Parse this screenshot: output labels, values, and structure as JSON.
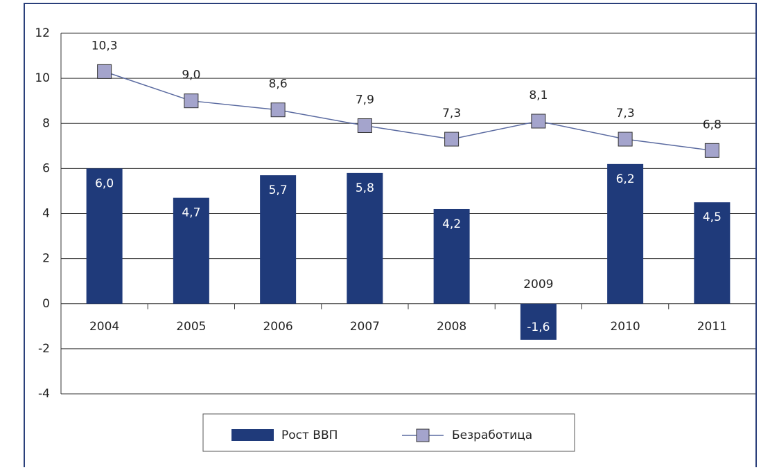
{
  "chart_data": {
    "type": "bar_line",
    "categories": [
      "2004",
      "2005",
      "2006",
      "2007",
      "2008",
      "2009",
      "2010",
      "2011"
    ],
    "series": [
      {
        "name": "Рост ВВП",
        "type": "bar",
        "color": "#1f3a7a",
        "values": [
          6.0,
          4.7,
          5.7,
          5.8,
          4.2,
          -1.6,
          6.2,
          4.5
        ],
        "value_labels": [
          "6,0",
          "4,7",
          "5,7",
          "5,8",
          "4,2",
          "-1,6",
          "6,2",
          "4,5"
        ]
      },
      {
        "name": "Безработица",
        "type": "line",
        "color": "#5a6aa0",
        "marker_color": "#a4a4cc",
        "values": [
          10.3,
          9.0,
          8.6,
          7.9,
          7.3,
          8.1,
          7.3,
          6.8
        ],
        "value_labels": [
          "10,3",
          "9,0",
          "8,6",
          "7,9",
          "7,3",
          "8,1",
          "7,3",
          "6,8"
        ]
      }
    ],
    "ylim": [
      -4,
      12
    ],
    "yticks": [
      -4,
      -2,
      0,
      2,
      4,
      6,
      8,
      10,
      12
    ],
    "grid": true,
    "legend": "bottom"
  }
}
